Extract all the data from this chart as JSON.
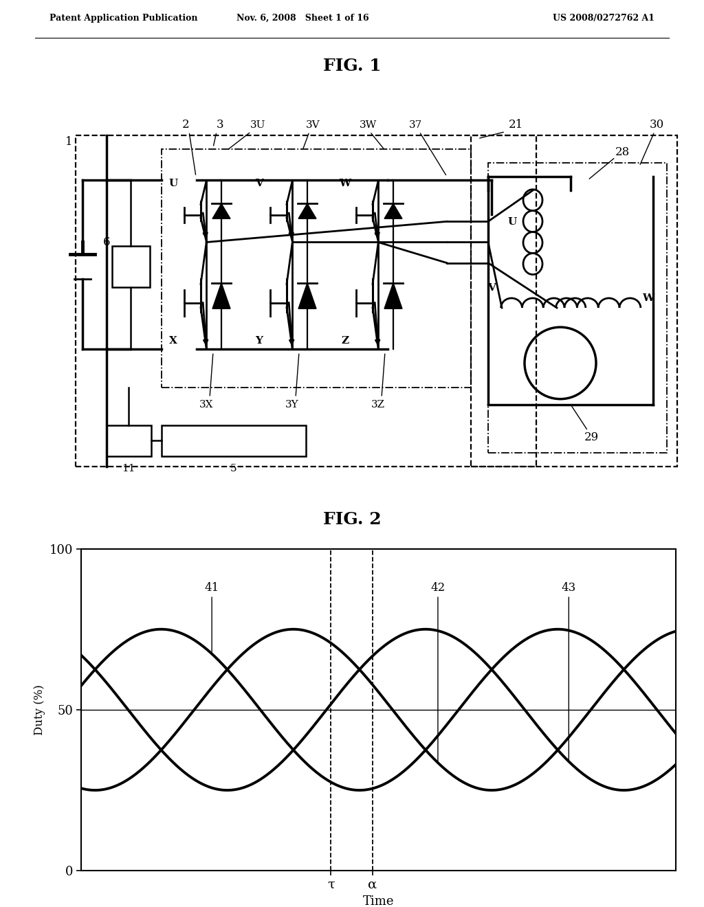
{
  "page_title_left": "Patent Application Publication",
  "page_title_center": "Nov. 6, 2008   Sheet 1 of 16",
  "page_title_right": "US 2008/0272762 A1",
  "fig1_title": "FIG. 1",
  "fig2_title": "FIG. 2",
  "fig2_ylabel": "Duty (%)",
  "fig2_xlabel": "Time",
  "fig2_yticks": [
    0,
    50,
    100
  ],
  "fig2_xtick_labels": [
    "τ",
    "α"
  ],
  "fig2_vline_positions": [
    0.42,
    0.49
  ],
  "background_color": "#ffffff"
}
